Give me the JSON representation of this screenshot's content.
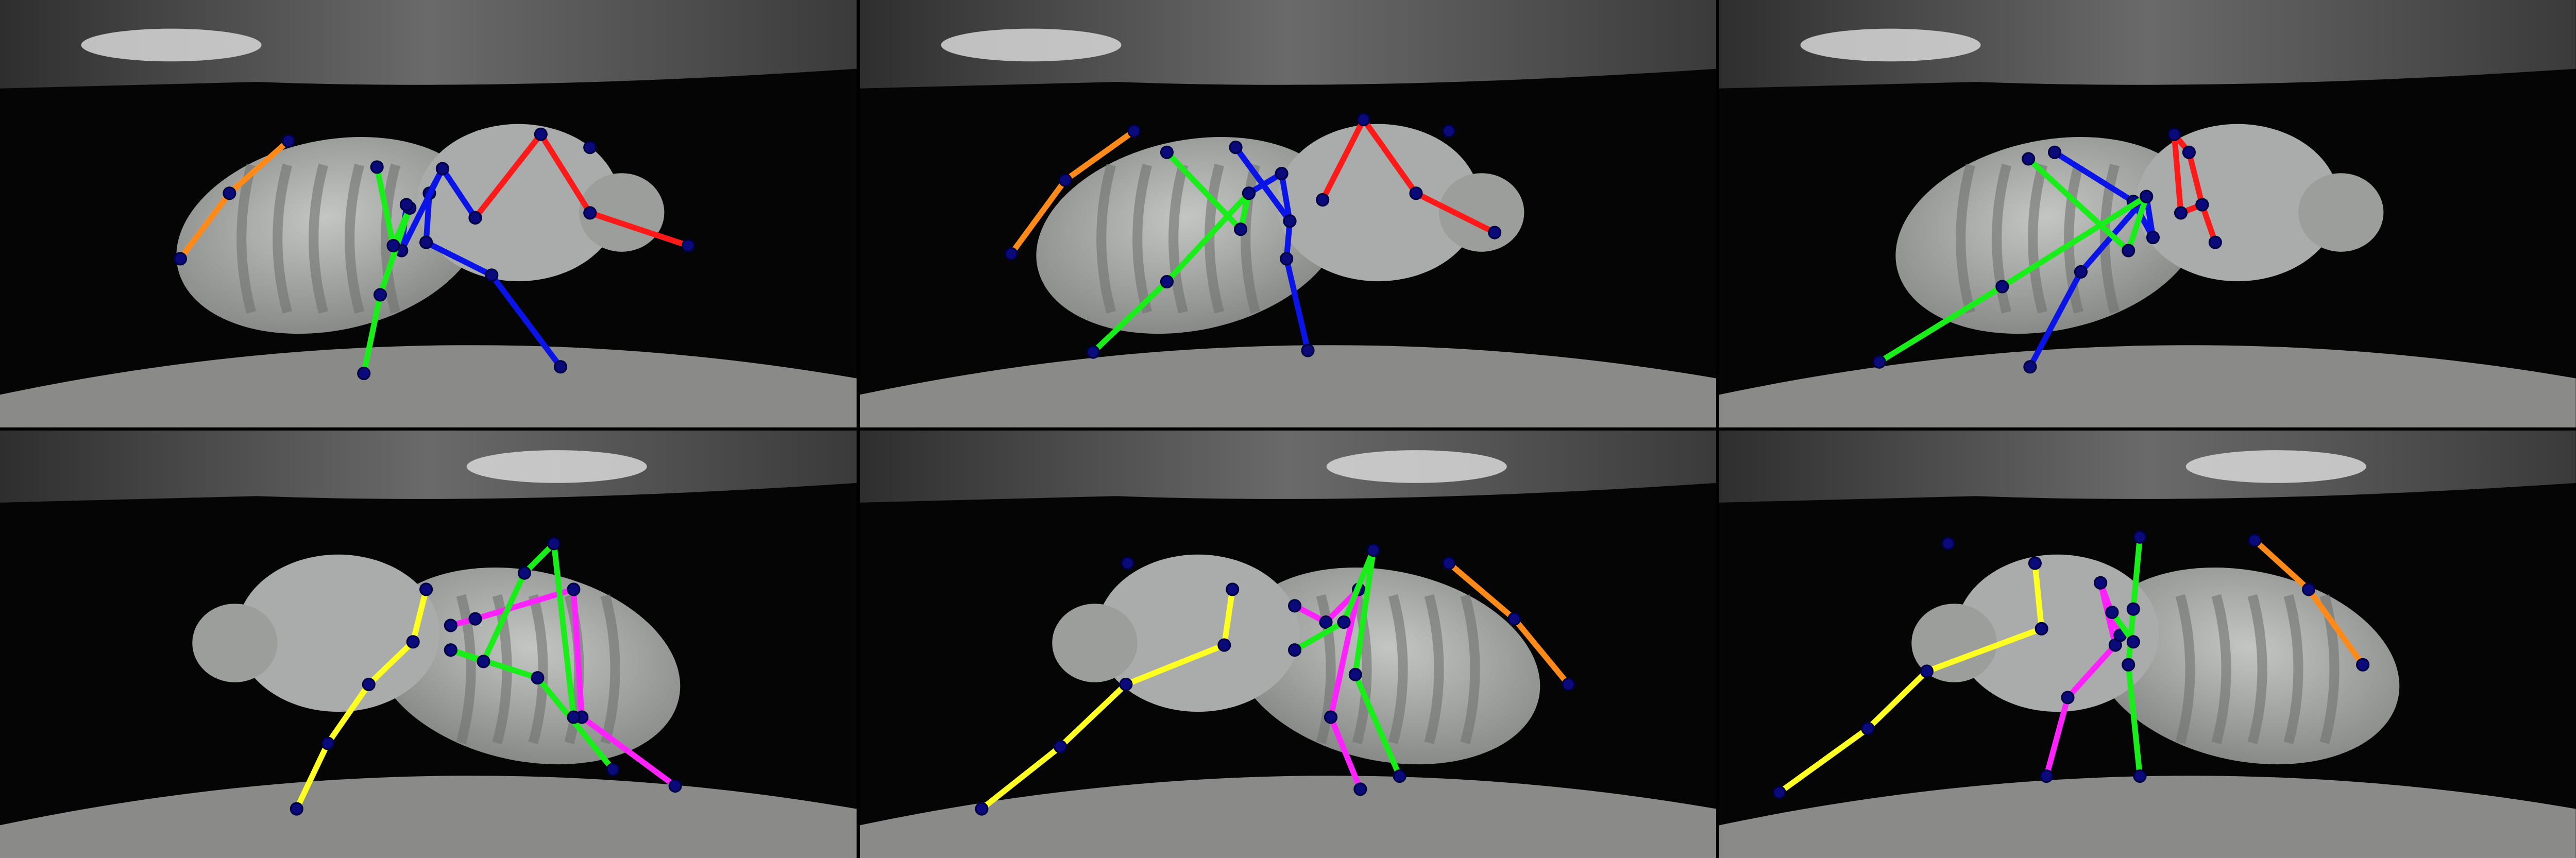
{
  "image_description_free": true,
  "colors": {
    "background": "#050505",
    "ledge": "#8a8a88",
    "fly_body": "#a9acaa",
    "fly_abdomen_stripe": "#6f7270",
    "wing_glare": "#d8d8d8",
    "keypoint_fill": "#0a0a7a",
    "keypoint_stroke": "#000044"
  },
  "limb_colors": {
    "abdomen": "#ff8a1a",
    "leg_front_a": "#ff1a1a",
    "leg_mid_a": "#0a14e6",
    "leg_hind_a": "#1aee1a",
    "leg_front_b": "#ffff22",
    "leg_mid_b": "#ff22ff",
    "leg_hind_b": "#1aee1a"
  },
  "panels": [
    {
      "view": "top-left",
      "facing": "right",
      "limbs": {
        "abdomen": [
          [
            110,
            158
          ],
          [
            140,
            118
          ],
          [
            176,
            86
          ]
        ],
        "leg_front_a": [
          [
            290,
            133
          ],
          [
            330,
            82
          ],
          [
            360,
            130
          ],
          [
            420,
            150
          ]
        ],
        "leg_mid_a": [
          [
            270,
            103
          ],
          [
            262,
            118
          ],
          [
            260,
            148
          ],
          [
            300,
            168
          ],
          [
            342,
            224
          ]
        ],
        "leg_mid_a_alt": [
          [
            248,
            125
          ],
          [
            245,
            153
          ],
          [
            270,
            103
          ],
          [
            290,
            133
          ]
        ],
        "leg_hind_a": [
          [
            230,
            102
          ],
          [
            240,
            150
          ],
          [
            250,
            127
          ],
          [
            232,
            180
          ],
          [
            222,
            228
          ]
        ]
      },
      "extra_points": [
        [
          360,
          90
        ],
        [
          248,
          125
        ]
      ]
    },
    {
      "view": "top-middle",
      "facing": "right",
      "limbs": {
        "abdomen": [
          [
            615,
            155
          ],
          [
            648,
            110
          ],
          [
            690,
            80
          ]
        ],
        "leg_front_a": [
          [
            805,
            122
          ],
          [
            830,
            73
          ],
          [
            862,
            118
          ],
          [
            910,
            142
          ]
        ],
        "leg_mid_a": [
          [
            752,
            90
          ],
          [
            785,
            135
          ],
          [
            783,
            158
          ],
          [
            796,
            214
          ]
        ],
        "leg_mid_a_alt": [
          [
            760,
            118
          ],
          [
            780,
            106
          ],
          [
            785,
            135
          ],
          [
            752,
            90
          ]
        ],
        "leg_hind_a": [
          [
            710,
            93
          ],
          [
            755,
            140
          ],
          [
            760,
            118
          ],
          [
            710,
            172
          ],
          [
            665,
            215
          ]
        ]
      },
      "extra_points": [
        [
          882,
          80
        ]
      ]
    },
    {
      "view": "top-right",
      "facing": "right",
      "limbs": {
        "leg_front_a": [
          [
            1323,
            82
          ],
          [
            1327,
            130
          ],
          [
            1340,
            125
          ],
          [
            1348,
            148
          ]
        ],
        "leg_front_a_alt": [
          [
            1323,
            82
          ],
          [
            1332,
            93
          ],
          [
            1340,
            125
          ]
        ],
        "leg_mid_a": [
          [
            1250,
            93
          ],
          [
            1298,
            123
          ],
          [
            1310,
            145
          ],
          [
            1306,
            120
          ],
          [
            1266,
            166
          ],
          [
            1235,
            224
          ]
        ],
        "leg_hind_a": [
          [
            1234,
            97
          ],
          [
            1295,
            153
          ],
          [
            1306,
            120
          ],
          [
            1218,
            175
          ],
          [
            1143,
            221
          ]
        ]
      },
      "extra_points": []
    },
    {
      "view": "bottom-left",
      "facing": "left",
      "limbs": {
        "leg_front_b": [
          [
            260,
            358
          ],
          [
            252,
            390
          ],
          [
            225,
            416
          ],
          [
            200,
            452
          ],
          [
            181,
            492
          ]
        ],
        "leg_mid_b": [
          [
            275,
            380
          ],
          [
            290,
            376
          ],
          [
            350,
            358
          ],
          [
            355,
            436
          ],
          [
            412,
            478
          ]
        ],
        "leg_hind_b": [
          [
            338,
            330
          ],
          [
            320,
            348
          ],
          [
            295,
            402
          ],
          [
            275,
            395
          ],
          [
            328,
            412
          ],
          [
            374,
            468
          ]
        ],
        "leg_hind_b_alt": [
          [
            338,
            330
          ],
          [
            350,
            436
          ]
        ]
      },
      "extra_points": []
    },
    {
      "view": "bottom-middle",
      "facing": "left",
      "limbs": {
        "abdomen": [
          [
            882,
            342
          ],
          [
            922,
            376
          ],
          [
            955,
            416
          ]
        ],
        "leg_front_b": [
          [
            750,
            358
          ],
          [
            745,
            392
          ],
          [
            685,
            416
          ],
          [
            645,
            454
          ],
          [
            597,
            492
          ]
        ],
        "leg_mid_b": [
          [
            788,
            368
          ],
          [
            807,
            378
          ],
          [
            827,
            358
          ],
          [
            810,
            436
          ],
          [
            828,
            480
          ]
        ],
        "leg_hind_b": [
          [
            836,
            334
          ],
          [
            825,
            410
          ],
          [
            852,
            472
          ]
        ],
        "leg_hind_b_alt": [
          [
            836,
            334
          ],
          [
            818,
            378
          ],
          [
            788,
            395
          ]
        ]
      },
      "extra_points": [
        [
          686,
          342
        ]
      ]
    },
    {
      "view": "bottom-right",
      "facing": "left",
      "limbs": {
        "abdomen": [
          [
            1372,
            328
          ],
          [
            1405,
            358
          ],
          [
            1438,
            404
          ]
        ],
        "leg_front_b": [
          [
            1238,
            342
          ],
          [
            1242,
            382
          ],
          [
            1172,
            408
          ],
          [
            1136,
            443
          ],
          [
            1082,
            482
          ]
        ],
        "leg_mid_b": [
          [
            1278,
            354
          ],
          [
            1287,
            392
          ],
          [
            1258,
            424
          ],
          [
            1245,
            472
          ]
        ],
        "leg_mid_b_alt": [
          [
            1278,
            354
          ],
          [
            1290,
            386
          ]
        ],
        "leg_hind_b": [
          [
            1302,
            326
          ],
          [
            1298,
            370
          ],
          [
            1295,
            404
          ],
          [
            1302,
            472
          ]
        ],
        "leg_hind_b_alt": [
          [
            1298,
            390
          ],
          [
            1285,
            372
          ]
        ]
      },
      "extra_points": [
        [
          1185,
          330
        ]
      ]
    }
  ]
}
